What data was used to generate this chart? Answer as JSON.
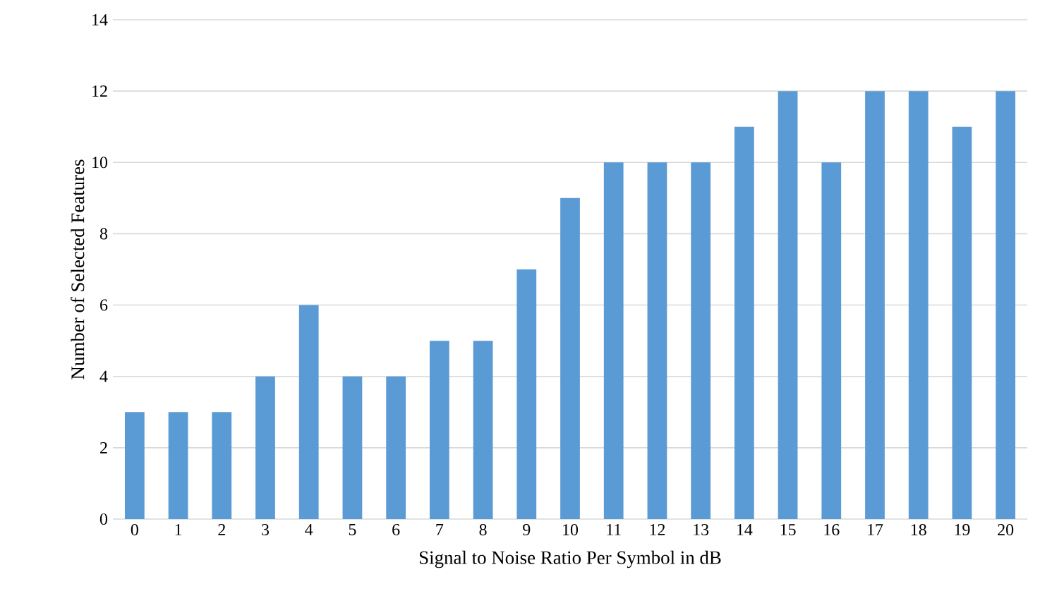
{
  "chart_data": {
    "type": "bar",
    "xlabel": "Signal to Noise Ratio Per Symbol in dB",
    "ylabel": "Number of Selected Features",
    "categories": [
      "0",
      "1",
      "2",
      "3",
      "4",
      "5",
      "6",
      "7",
      "8",
      "9",
      "10",
      "11",
      "12",
      "13",
      "14",
      "15",
      "16",
      "17",
      "18",
      "19",
      "20"
    ],
    "values": [
      3,
      3,
      3,
      4,
      6,
      4,
      4,
      5,
      5,
      7,
      9,
      10,
      10,
      10,
      11,
      12,
      10,
      12,
      12,
      11,
      12
    ],
    "color": "#5b9bd5",
    "ylim": [
      0,
      14
    ],
    "yticks": [
      0,
      2,
      4,
      6,
      8,
      10,
      12,
      14
    ],
    "grid": "y"
  }
}
